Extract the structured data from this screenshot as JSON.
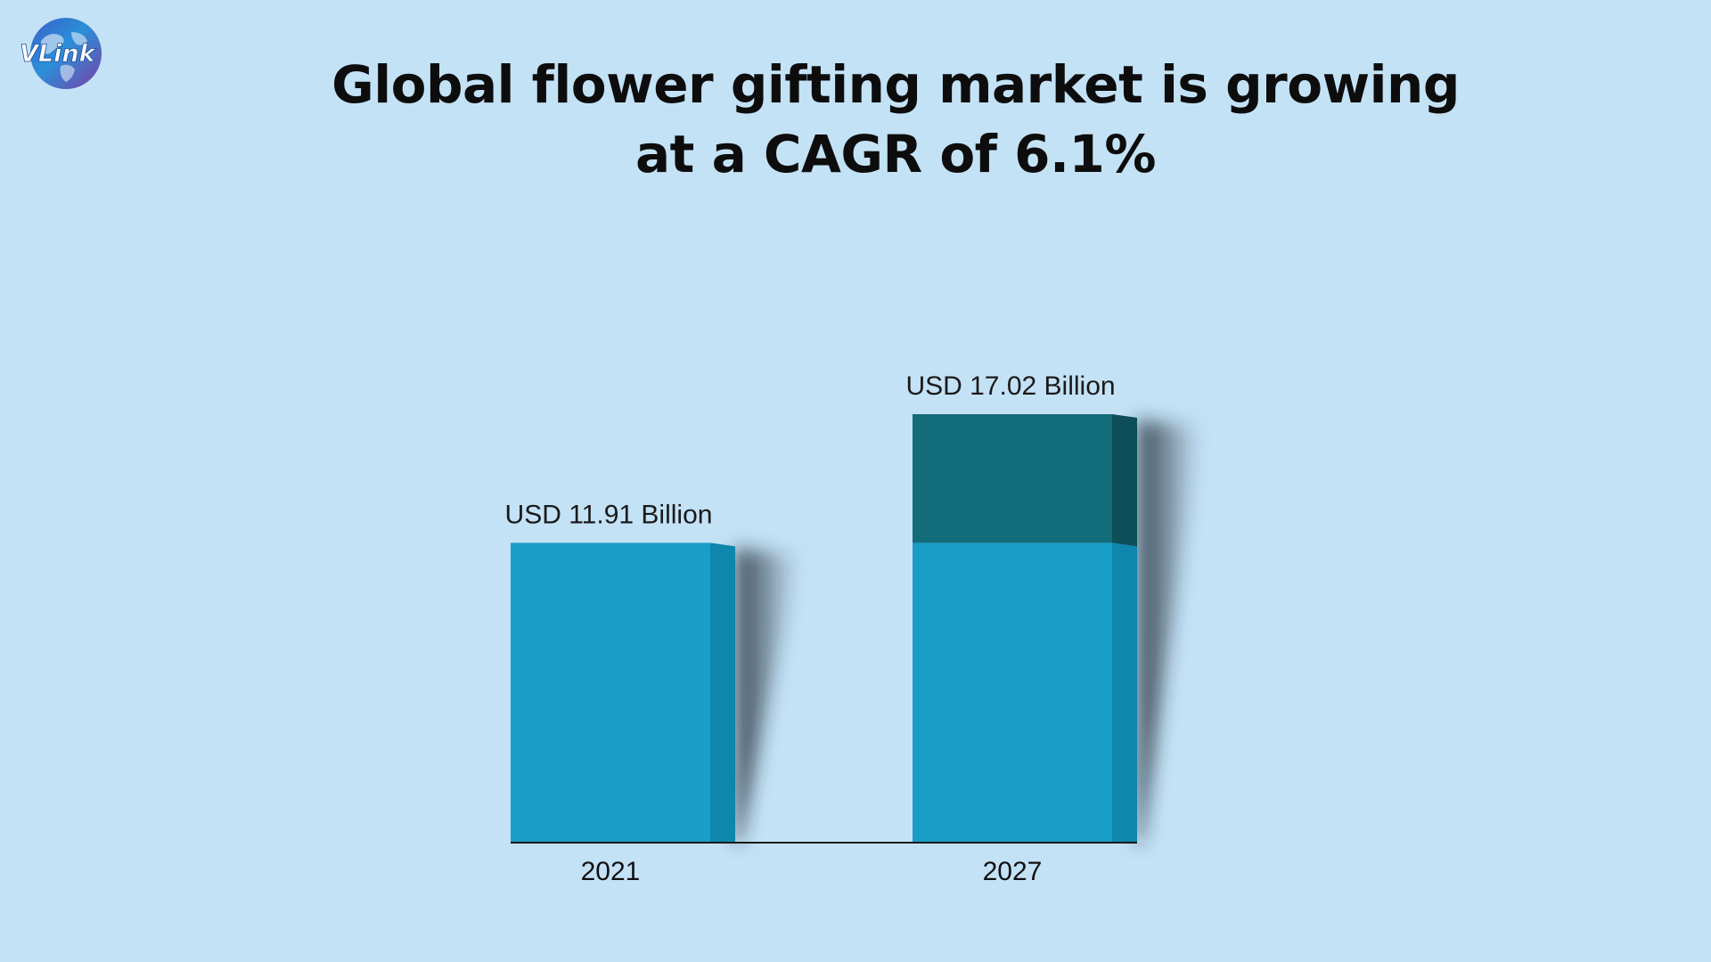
{
  "brand": {
    "logo_text": "VLink",
    "colors": {
      "globe_blue": "#2a8fd8",
      "globe_purple": "#7b3fa8",
      "text_white": "#ffffff"
    }
  },
  "title": {
    "line1": "Global flower gifting market is growing",
    "line2": "at a CAGR of 6.1%"
  },
  "chart_data": {
    "type": "bar",
    "categories": [
      "2021",
      "2027"
    ],
    "values": [
      11.91,
      17.02
    ],
    "data_labels": [
      "USD 11.91 Billion",
      "USD 17.02 Billion"
    ],
    "unit": "USD Billion",
    "baseline_reference": 11.91,
    "grid": false,
    "legend": "none",
    "colors": {
      "base_front": "#189ec8",
      "base_side": "#0e86ad",
      "growth_front": "#136c79",
      "growth_side": "#0d4e58",
      "axis": "#1a1a1a"
    }
  }
}
